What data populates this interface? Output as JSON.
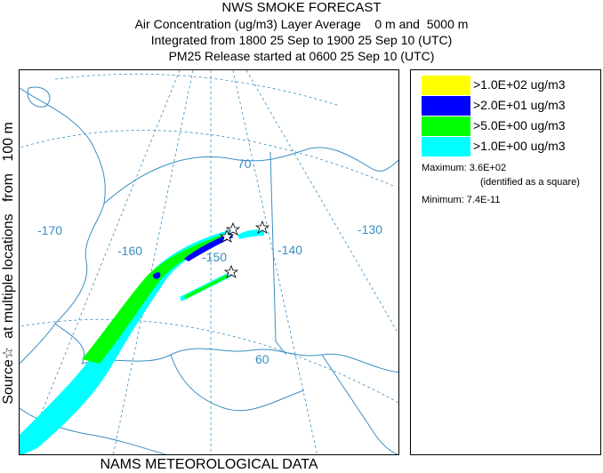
{
  "title": {
    "line1": "NWS SMOKE FORECAST",
    "line2": "Air Concentration (ug/m3) Layer Average    0 m and  5000 m",
    "line3": "Integrated from 1800 25 Sep to 1900 25 Sep 10 (UTC)",
    "line4": "PM25 Release started at 0600 25 Sep 10 (UTC)"
  },
  "side_label": "Source☆  at multiple locations   from   100 m",
  "footer": "NAMS METEOROLOGICAL DATA",
  "map": {
    "longitude_labels": [
      "-170",
      "-160",
      "-150",
      "-140",
      "-130"
    ],
    "latitude_labels": [
      "70",
      "60"
    ]
  },
  "legend": {
    "items": [
      {
        "label": ">1.0E+02 ug/m3",
        "color": "#ffff00"
      },
      {
        "label": ">2.0E+01 ug/m3",
        "color": "#0000ff"
      },
      {
        "label": ">5.0E+00 ug/m3",
        "color": "#00ff00"
      },
      {
        "label": ">1.0E+00 ug/m3",
        "color": "#00ffff"
      }
    ],
    "maximum": "Maximum: 3.6E+02",
    "maximum_note": "(identified as a square)",
    "minimum": "Minimum: 7.4E-11"
  },
  "colors": {
    "graticule": "#3a8ec2",
    "coast": "#3a8ec2"
  },
  "icons": [
    "source-star-icon"
  ]
}
